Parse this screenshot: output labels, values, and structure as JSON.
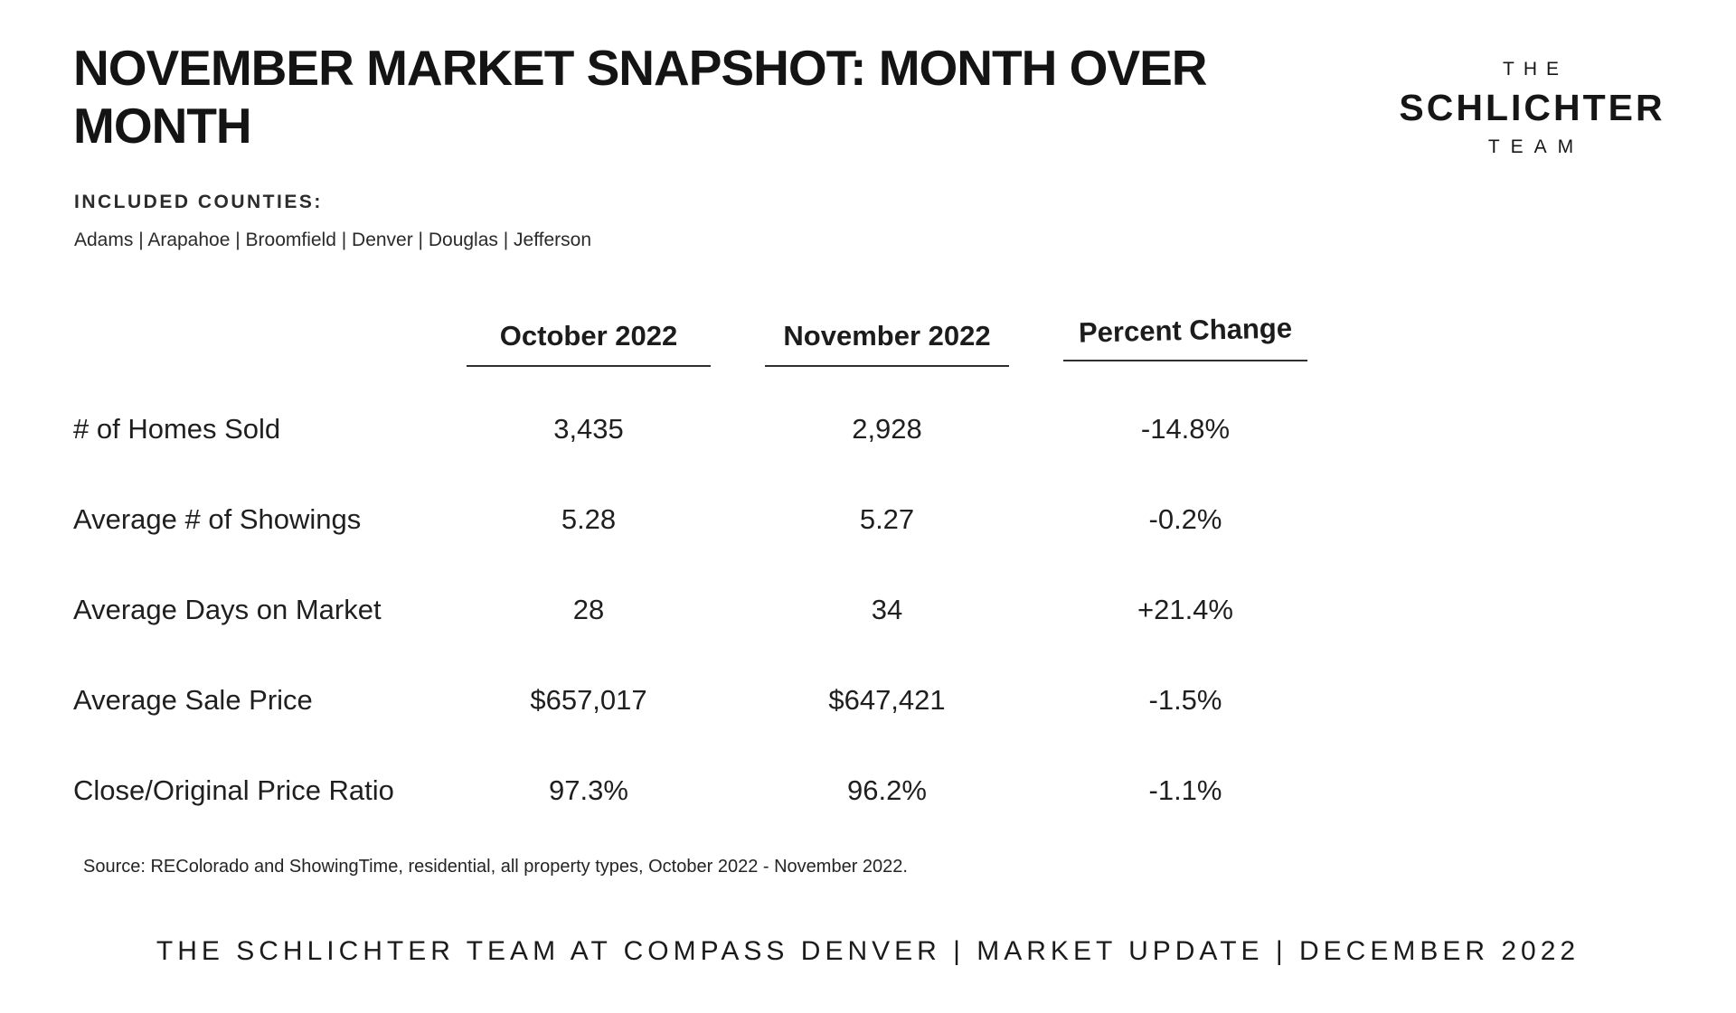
{
  "page": {
    "title": "NOVEMBER MARKET SNAPSHOT: MONTH OVER MONTH",
    "included_counties_label": "INCLUDED COUNTIES:",
    "counties": "Adams | Arapahoe | Broomfield | Denver | Douglas | Jefferson",
    "source": "Source: REColorado and ShowingTime, residential, all property types, October 2022 - November 2022.",
    "footer": "THE SCHLICHTER TEAM AT COMPASS DENVER | MARKET UPDATE | DECEMBER 2022"
  },
  "logo": {
    "line1": "THE",
    "line2": "SCHLICHTER",
    "line3": "TEAM"
  },
  "chart_data": {
    "type": "table",
    "columns": [
      "October 2022",
      "November 2022",
      "Percent Change"
    ],
    "rows": [
      {
        "label": "# of Homes Sold",
        "october": "3,435",
        "november": "2,928",
        "change": "-14.8%"
      },
      {
        "label": "Average # of Showings",
        "october": "5.28",
        "november": "5.27",
        "change": "-0.2%"
      },
      {
        "label": "Average Days on Market",
        "october": "28",
        "november": "34",
        "change": "+21.4%"
      },
      {
        "label": "Average Sale Price",
        "october": "$657,017",
        "november": "$647,421",
        "change": "-1.5%"
      },
      {
        "label": "Close/Original Price Ratio",
        "october": "97.3%",
        "november": "96.2%",
        "change": "-1.1%"
      }
    ]
  },
  "colors": {
    "background": "#ffffff",
    "text": "#1d1d1d",
    "rule": "#2e2e2e"
  }
}
